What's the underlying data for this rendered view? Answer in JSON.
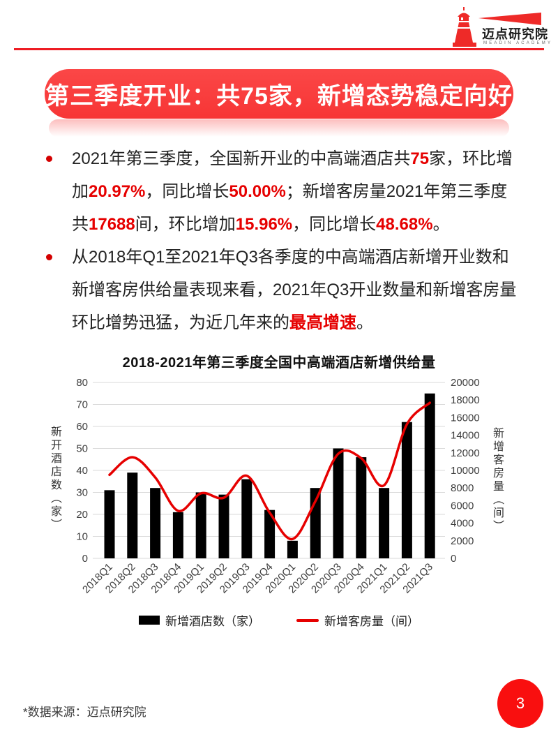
{
  "header": {
    "logo": {
      "cn": "迈点研究院",
      "en": "MEADIN ACADEMY"
    }
  },
  "banner": {
    "title": "第三季度开业：共75家，新增态势稳定向好"
  },
  "bullets": [
    {
      "lines": [
        [
          {
            "t": "2021年第三季度，全国新开业的中高端酒店共"
          },
          {
            "t": "75",
            "hl": true
          },
          {
            "t": "家，环比增"
          }
        ],
        [
          {
            "t": "加"
          },
          {
            "t": "20.97%",
            "hl": true
          },
          {
            "t": "，同比增长"
          },
          {
            "t": "50.00%",
            "hl": true
          },
          {
            "t": "；新增客房量2021年第三季度"
          }
        ],
        [
          {
            "t": "共"
          },
          {
            "t": "17688",
            "hl": true
          },
          {
            "t": "间，环比增加"
          },
          {
            "t": "15.96%",
            "hl": true
          },
          {
            "t": "，同比增长"
          },
          {
            "t": "48.68%",
            "hl": true
          },
          {
            "t": "。"
          }
        ]
      ]
    },
    {
      "lines": [
        [
          {
            "t": "从2018年Q1至2021年Q3各季度的中高端酒店新增开业数和"
          }
        ],
        [
          {
            "t": "新增客房供给量表现来看，2021年Q3开业数量和新增客房量"
          }
        ],
        [
          {
            "t": "环比增势迅猛，为近几年来的"
          },
          {
            "t": "最高增速",
            "hl": true
          },
          {
            "t": "。"
          }
        ]
      ]
    }
  ],
  "chart_data": {
    "type": "combo",
    "title": "2018-2021年第三季度全国中高端酒店新增供给量",
    "categories": [
      "2018Q1",
      "2018Q2",
      "2018Q3",
      "2018Q4",
      "2019Q1",
      "2019Q2",
      "2019Q3",
      "2019Q4",
      "2020Q1",
      "2020Q2",
      "2020Q3",
      "2020Q4",
      "2021Q1",
      "2021Q2",
      "2021Q3"
    ],
    "series": [
      {
        "name": "新增酒店数（家）",
        "type": "bar",
        "axis": "left",
        "color": "#000000",
        "values": [
          31,
          39,
          32,
          21,
          30,
          29,
          36,
          22,
          8,
          32,
          50,
          46,
          32,
          62,
          75
        ]
      },
      {
        "name": "新增客房量（间）",
        "type": "line",
        "axis": "right",
        "color": "#e60000",
        "values": [
          9500,
          11500,
          9200,
          5400,
          7400,
          6900,
          9400,
          5200,
          2200,
          6500,
          11897,
          11400,
          8300,
          15254,
          17688
        ]
      }
    ],
    "left_axis": {
      "label": "新开酒店数（家）",
      "min": 0,
      "max": 80,
      "step": 10
    },
    "right_axis": {
      "label": "新增客房量（间）",
      "min": 0,
      "max": 20000,
      "step": 2000
    },
    "grid": true,
    "legend_position": "bottom",
    "gridline_color": "#d9d9d9"
  },
  "footer": {
    "source": "*数据来源：迈点研究院",
    "page": "3"
  }
}
